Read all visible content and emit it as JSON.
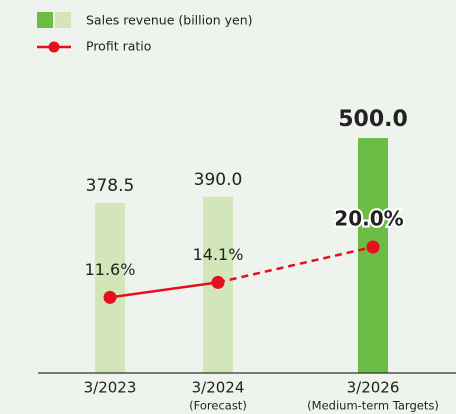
{
  "chart_data": {
    "type": "bar_line",
    "categories": [
      "3/2023",
      "3/2024",
      "3/2026"
    ],
    "category_notes": [
      null,
      "(Forecast)",
      "(Medium-term Targets)"
    ],
    "series": [
      {
        "name": "Sales revenue (billion yen)",
        "type": "bar",
        "colors": [
          "#d2e6ba",
          "#d2e6ba",
          "#6cbd45"
        ],
        "values": [
          378.5,
          390.0,
          500.0
        ],
        "value_labels": [
          "378.5",
          "390.0",
          "500.0"
        ]
      },
      {
        "name": "Profit ratio",
        "type": "line",
        "axis": "y2",
        "color": "#e60f1e",
        "values": [
          11.6,
          14.1,
          20.0
        ],
        "value_labels": [
          "11.6%",
          "14.1%",
          "20.0%"
        ]
      }
    ],
    "ylim": [
      60,
      560
    ],
    "y2lim": [
      -1,
      43.5
    ]
  }
}
